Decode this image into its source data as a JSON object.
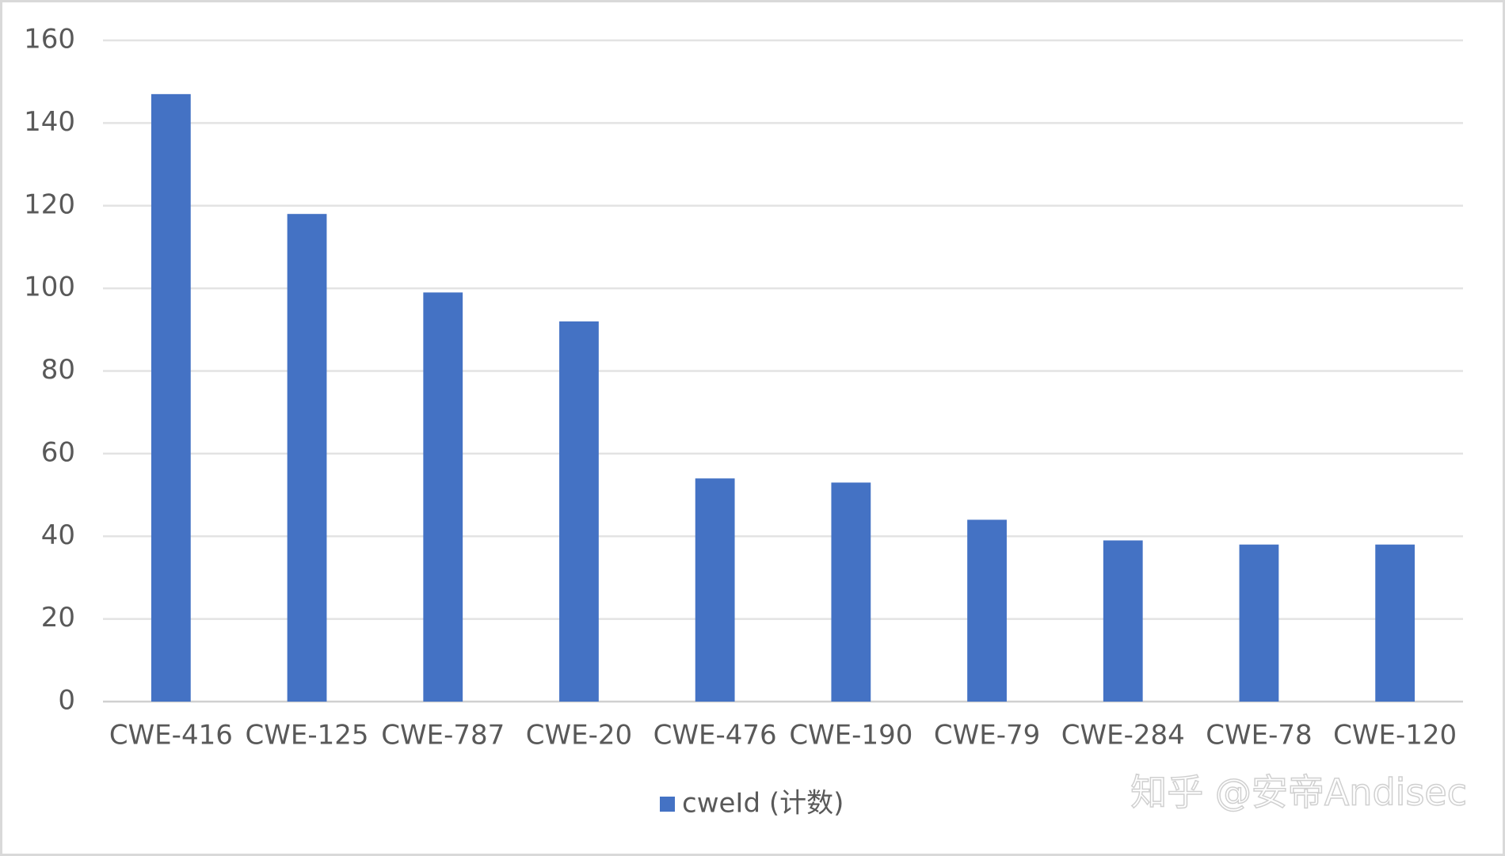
{
  "chart_data": {
    "type": "bar",
    "categories": [
      "CWE-416",
      "CWE-125",
      "CWE-787",
      "CWE-20",
      "CWE-476",
      "CWE-190",
      "CWE-79",
      "CWE-284",
      "CWE-78",
      "CWE-120"
    ],
    "series": [
      {
        "name": "cweId (计数)",
        "color": "#4472c4",
        "values": [
          147,
          118,
          99,
          92,
          54,
          53,
          44,
          39,
          38,
          38
        ]
      }
    ],
    "ylim": [
      0,
      160
    ],
    "yticks": [
      0,
      20,
      40,
      60,
      80,
      100,
      120,
      140,
      160
    ],
    "grid": true,
    "legend": "bottom",
    "watermark": "知乎 @安帝Andisec"
  }
}
